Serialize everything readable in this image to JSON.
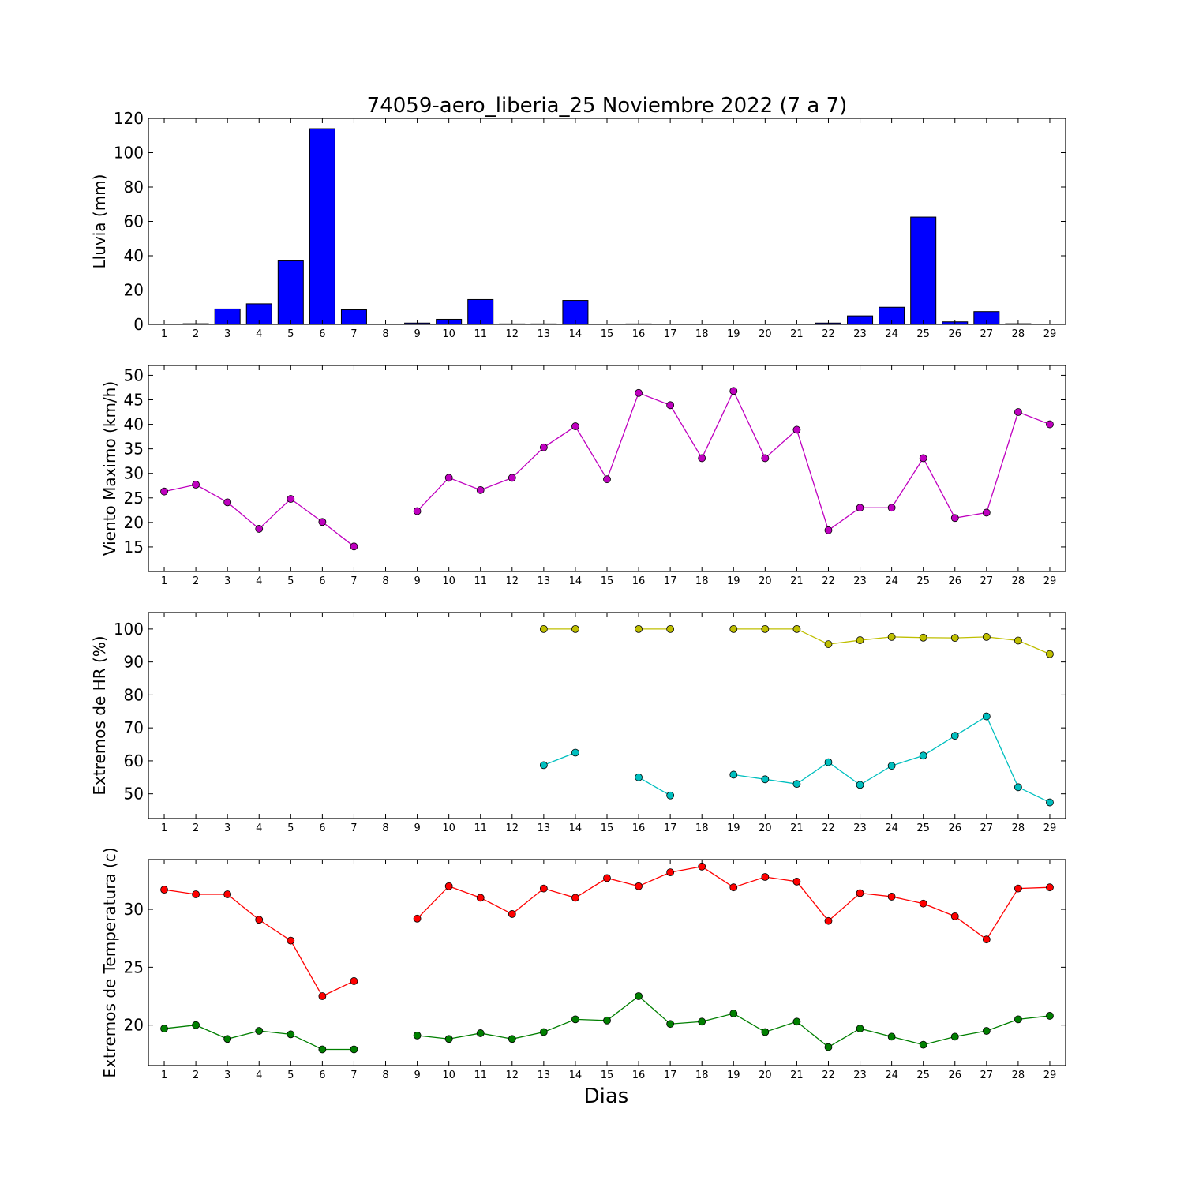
{
  "colors": {
    "rain": "#0000ff",
    "wind": "#bf00bf",
    "hr_max": "#bfbf00",
    "hr_min": "#00bfbf",
    "temp_max": "#ff0000",
    "temp_min": "#007f00"
  },
  "chart_data": [
    {
      "type": "bar",
      "title": "74059-aero_liberia_25 Noviembre 2022  (7 a 7)",
      "ylabel": "Lluvia (mm)",
      "xlabel": "",
      "ylim": [
        0,
        120
      ],
      "yticks": [
        0,
        20,
        40,
        60,
        80,
        100,
        120
      ],
      "categories": [
        "1",
        "2",
        "3",
        "4",
        "5",
        "6",
        "7",
        "8",
        "9",
        "10",
        "11",
        "12",
        "13",
        "14",
        "15",
        "16",
        "17",
        "18",
        "19",
        "20",
        "21",
        "22",
        "23",
        "24",
        "25",
        "26",
        "27",
        "28",
        "29"
      ],
      "values": [
        0,
        0.4,
        9,
        12,
        37,
        114,
        8.5,
        0,
        0.8,
        3,
        14.5,
        0.3,
        0.3,
        14,
        0,
        0.3,
        0,
        0,
        0,
        0,
        0,
        0.8,
        5,
        10,
        62.5,
        1.5,
        7.5,
        0.4,
        0
      ],
      "grid": false
    },
    {
      "type": "line",
      "ylabel": "Viento Maximo (km/h)",
      "xlabel": "",
      "ylim": [
        10,
        52
      ],
      "yticks": [
        15,
        20,
        25,
        30,
        35,
        40,
        45,
        50
      ],
      "x": [
        1,
        2,
        3,
        4,
        5,
        6,
        7,
        8,
        9,
        10,
        11,
        12,
        13,
        14,
        15,
        16,
        17,
        18,
        19,
        20,
        21,
        22,
        23,
        24,
        25,
        26,
        27,
        28,
        29
      ],
      "series": [
        {
          "color_key": "wind",
          "values": [
            26.3,
            27.7,
            24.1,
            18.7,
            24.8,
            20.1,
            15.1,
            null,
            22.3,
            29.1,
            26.6,
            29.1,
            35.3,
            39.6,
            28.8,
            46.4,
            43.9,
            33.1,
            46.8,
            33.1,
            38.9,
            18.4,
            23.0,
            23.0,
            33.1,
            20.9,
            22.0,
            42.5,
            40.0
          ]
        }
      ],
      "grid": false
    },
    {
      "type": "line",
      "ylabel": "Extremos de HR (%)",
      "xlabel": "",
      "ylim": [
        42.5,
        105
      ],
      "yticks": [
        50,
        60,
        70,
        80,
        90,
        100
      ],
      "x": [
        1,
        2,
        3,
        4,
        5,
        6,
        7,
        8,
        9,
        10,
        11,
        12,
        13,
        14,
        15,
        16,
        17,
        18,
        19,
        20,
        21,
        22,
        23,
        24,
        25,
        26,
        27,
        28,
        29
      ],
      "series": [
        {
          "color_key": "hr_max",
          "values": [
            null,
            null,
            null,
            null,
            null,
            null,
            null,
            null,
            null,
            null,
            null,
            null,
            100,
            100,
            null,
            100,
            100,
            null,
            100,
            100,
            100,
            95.4,
            96.6,
            97.6,
            97.4,
            97.3,
            97.6,
            96.5,
            92.4
          ]
        },
        {
          "color_key": "hr_min",
          "values": [
            null,
            null,
            null,
            null,
            null,
            null,
            null,
            null,
            null,
            null,
            null,
            null,
            58.7,
            62.5,
            null,
            55.0,
            49.5,
            null,
            55.8,
            54.4,
            53.0,
            59.6,
            52.7,
            58.5,
            61.6,
            67.6,
            73.5,
            52.0,
            47.4
          ]
        }
      ],
      "grid": false
    },
    {
      "type": "line",
      "ylabel": "Extremos de Temperatura (c)",
      "xlabel": "Dias",
      "ylim": [
        16.5,
        34.3
      ],
      "yticks": [
        20,
        25,
        30
      ],
      "x": [
        1,
        2,
        3,
        4,
        5,
        6,
        7,
        8,
        9,
        10,
        11,
        12,
        13,
        14,
        15,
        16,
        17,
        18,
        19,
        20,
        21,
        22,
        23,
        24,
        25,
        26,
        27,
        28,
        29
      ],
      "series": [
        {
          "color_key": "temp_max",
          "values": [
            31.7,
            31.3,
            31.3,
            29.1,
            27.3,
            22.5,
            23.8,
            null,
            29.2,
            32.0,
            31.0,
            29.6,
            31.8,
            31.0,
            32.7,
            32.0,
            33.2,
            33.7,
            31.9,
            32.8,
            32.4,
            29.0,
            31.4,
            31.1,
            30.5,
            29.4,
            27.4,
            31.8,
            31.9
          ]
        },
        {
          "color_key": "temp_min",
          "values": [
            19.7,
            20.0,
            18.8,
            19.5,
            19.2,
            17.9,
            17.9,
            null,
            19.1,
            18.8,
            19.3,
            18.8,
            19.4,
            20.5,
            20.4,
            22.5,
            20.1,
            20.3,
            21.0,
            19.4,
            20.3,
            18.1,
            19.7,
            19.0,
            18.3,
            19.0,
            19.5,
            20.5,
            20.8
          ]
        }
      ],
      "grid": false
    }
  ]
}
